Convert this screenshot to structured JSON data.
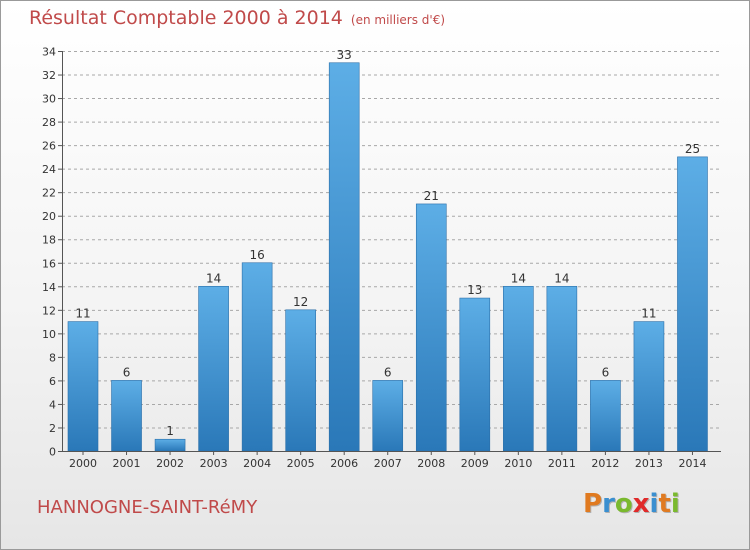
{
  "header": {
    "title": "Résultat Comptable 2000 à 2014",
    "unit": "(en milliers d'€)"
  },
  "footer": {
    "place_name": "HANNOGNE-SAINT-RéMY",
    "logo_text": "Proxiti"
  },
  "colors": {
    "bar_top": "#5daee6",
    "bar_bottom": "#2a78b8",
    "grid": "#a8a8a8",
    "title": "#c04a4a",
    "logo_letters": [
      "#e07a20",
      "#3a8fd0",
      "#7ab92e",
      "#e02a2a",
      "#3a8fd0",
      "#e07a20",
      "#7ab92e"
    ]
  },
  "chart_data": {
    "type": "bar",
    "title": "Résultat Comptable 2000 à 2014",
    "subtitle": "(en milliers d'€)",
    "xlabel": "",
    "ylabel": "",
    "categories": [
      "2000",
      "2001",
      "2002",
      "2003",
      "2004",
      "2005",
      "2006",
      "2007",
      "2008",
      "2009",
      "2010",
      "2011",
      "2012",
      "2013",
      "2014"
    ],
    "values": [
      11,
      6,
      1,
      14,
      16,
      12,
      33,
      6,
      21,
      13,
      14,
      14,
      6,
      11,
      25
    ],
    "ylim": [
      0,
      34
    ],
    "yticks": [
      0,
      2,
      4,
      6,
      8,
      10,
      12,
      14,
      16,
      18,
      20,
      22,
      24,
      26,
      28,
      30,
      32,
      34
    ],
    "grid": true,
    "data_labels": true
  }
}
